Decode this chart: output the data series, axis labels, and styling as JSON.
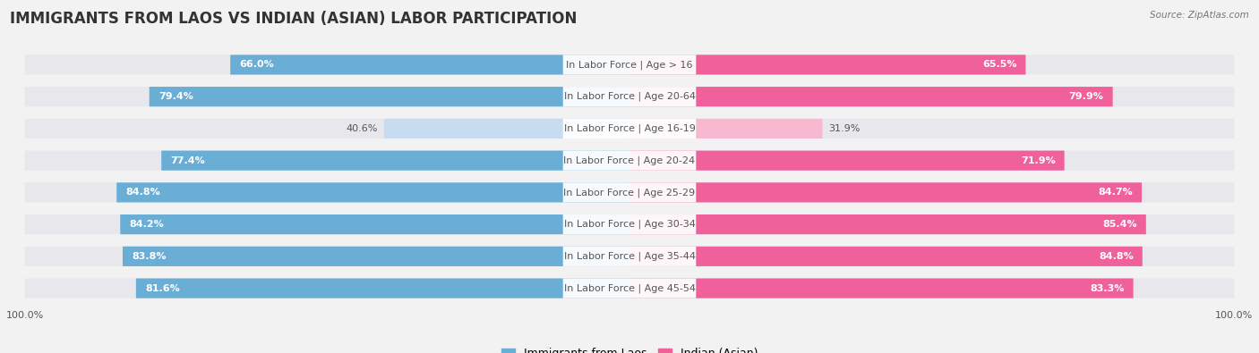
{
  "title": "IMMIGRANTS FROM LAOS VS INDIAN (ASIAN) LABOR PARTICIPATION",
  "source": "Source: ZipAtlas.com",
  "categories": [
    "In Labor Force | Age > 16",
    "In Labor Force | Age 20-64",
    "In Labor Force | Age 16-19",
    "In Labor Force | Age 20-24",
    "In Labor Force | Age 25-29",
    "In Labor Force | Age 30-34",
    "In Labor Force | Age 35-44",
    "In Labor Force | Age 45-54"
  ],
  "laos_values": [
    66.0,
    79.4,
    40.6,
    77.4,
    84.8,
    84.2,
    83.8,
    81.6
  ],
  "indian_values": [
    65.5,
    79.9,
    31.9,
    71.9,
    84.7,
    85.4,
    84.8,
    83.3
  ],
  "laos_color": "#6AAED6",
  "laos_light_color": "#C8DCF0",
  "indian_color": "#F0609A",
  "indian_light_color": "#F7B8D0",
  "row_bg_color": "#E8E8EC",
  "bg_color": "#F2F2F2",
  "max_value": 100.0,
  "title_fontsize": 12,
  "label_fontsize": 8,
  "value_fontsize": 8,
  "legend_fontsize": 9,
  "axis_label_fontsize": 8
}
